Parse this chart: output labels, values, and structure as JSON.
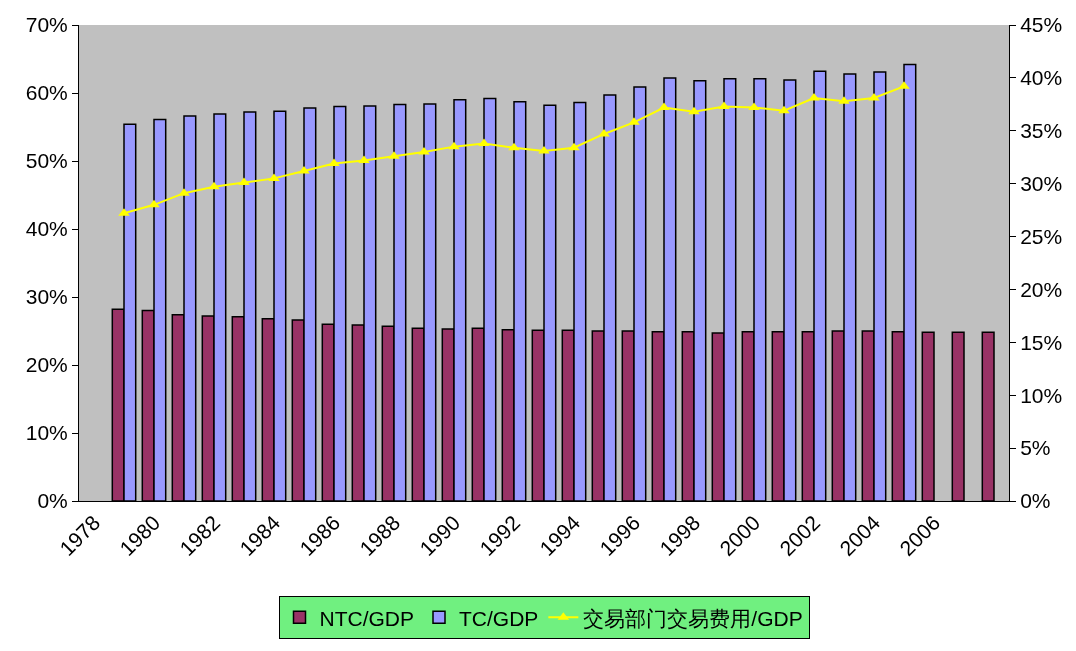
{
  "chart_data": {
    "type": "bar",
    "categories": [
      "1978",
      null,
      "1980",
      null,
      "1982",
      null,
      "1984",
      null,
      "1986",
      null,
      "1988",
      null,
      "1990",
      null,
      "1992",
      null,
      "1994",
      null,
      "1996",
      null,
      "1998",
      null,
      "2000",
      null,
      "2002",
      null,
      "2004",
      null,
      "2006",
      null,
      null
    ],
    "series": [
      {
        "name": "NTC/GDP",
        "color": "#993366",
        "values": [
          null,
          28.2,
          28.0,
          27.4,
          27.2,
          27.1,
          26.8,
          26.6,
          26.0,
          25.9,
          25.7,
          25.4,
          25.3,
          25.4,
          25.2,
          25.1,
          25.1,
          25.0,
          25.0,
          24.9,
          24.9,
          24.7,
          24.9,
          24.9,
          24.9,
          25.0,
          25.0,
          24.9,
          24.8,
          24.8,
          24.8
        ]
      },
      {
        "name": "TC/GDP",
        "color": "#9999ff",
        "values": [
          null,
          55.4,
          56.1,
          56.6,
          56.9,
          57.2,
          57.3,
          57.8,
          58.0,
          58.1,
          58.3,
          58.4,
          59.0,
          59.2,
          58.7,
          58.2,
          58.6,
          59.7,
          60.9,
          62.2,
          61.8,
          62.1,
          62.1,
          61.9,
          63.2,
          62.8,
          63.1,
          64.2,
          null,
          null,
          null
        ]
      },
      {
        "name": "交易部门交易费用/GDP",
        "color": "#ffff00",
        "type": "line",
        "axis": "y2",
        "marker": "triangle",
        "values": [
          null,
          27.2,
          28.0,
          29.1,
          29.7,
          30.1,
          30.5,
          31.2,
          31.9,
          32.2,
          32.6,
          33.0,
          33.5,
          33.8,
          33.4,
          33.1,
          33.4,
          34.7,
          35.8,
          37.2,
          36.8,
          37.3,
          37.2,
          36.9,
          38.1,
          37.8,
          38.1,
          39.2,
          null,
          null,
          null
        ]
      }
    ],
    "ylim": [
      0,
      70
    ],
    "yticks": [
      {
        "value": 0,
        "label": "0%"
      },
      {
        "value": 10,
        "label": "10%"
      },
      {
        "value": 20,
        "label": "20%"
      },
      {
        "value": 30,
        "label": "30%"
      },
      {
        "value": 40,
        "label": "40%"
      },
      {
        "value": 50,
        "label": "50%"
      },
      {
        "value": 60,
        "label": "60%"
      },
      {
        "value": 70,
        "label": "70%"
      }
    ],
    "y2lim": [
      0,
      45
    ],
    "y2ticks": [
      {
        "value": 0,
        "label": "0%"
      },
      {
        "value": 5,
        "label": "5%"
      },
      {
        "value": 10,
        "label": "10%"
      },
      {
        "value": 15,
        "label": "15%"
      },
      {
        "value": 20,
        "label": "20%"
      },
      {
        "value": 25,
        "label": "25%"
      },
      {
        "value": 30,
        "label": "30%"
      },
      {
        "value": 35,
        "label": "35%"
      },
      {
        "value": 40,
        "label": "40%"
      },
      {
        "value": 45,
        "label": "45%"
      }
    ],
    "legend": "bottom"
  }
}
